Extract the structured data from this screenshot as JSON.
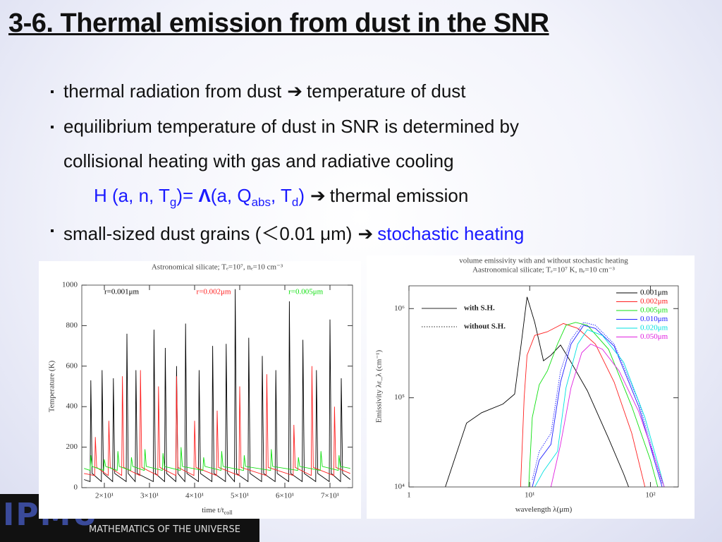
{
  "slide": {
    "title": "3-6. Thermal emission from dust in the SNR",
    "bullets": [
      [
        "thermal radiation from dust",
        "➔",
        "temperature of dust"
      ],
      [
        "equilibrium temperature of dust in SNR is determined by"
      ],
      [
        "collisional heating with gas and radiative cooling"
      ],
      [
        "H (a, n, T",
        "g",
        ")=",
        "Λ",
        "(a, Q",
        "abs",
        ", T",
        "d",
        ")",
        "➔",
        "thermal emission"
      ],
      [
        "small-sized dust grains (＜0.01 μm)",
        "➔",
        "stochastic heating"
      ]
    ],
    "logo": "IPMU",
    "footer": "MATHEMATICS OF THE UNIVERSE"
  },
  "chart_data": [
    {
      "type": "line",
      "title": "Astronomical silicate; Tₑ=10⁷,  nₑ=10 cm⁻³",
      "x_label": "time t/t",
      "x_label_sub": "coll",
      "y_label": "Temperature (K)",
      "xlim": [
        15,
        75
      ],
      "ylim": [
        0,
        1000
      ],
      "xticks": [
        {
          "value": 20,
          "label": "2×10¹"
        },
        {
          "value": 30,
          "label": "3×10¹"
        },
        {
          "value": 40,
          "label": "4×10¹"
        },
        {
          "value": 50,
          "label": "5×10¹"
        },
        {
          "value": 60,
          "label": "6×10¹"
        },
        {
          "value": 70,
          "label": "7×10¹"
        }
      ],
      "yticks": [
        0,
        200,
        400,
        600,
        800,
        1000
      ],
      "series": [
        {
          "name": "r=0.001μm",
          "color": "#000000",
          "x": [
            15.5,
            16.85,
            17,
            17.3,
            19.35,
            19.5,
            19.8,
            21.85,
            22,
            22.3,
            24.85,
            25,
            25.3,
            26.85,
            27,
            27.3,
            30.85,
            31,
            31.3,
            33.35,
            33.5,
            33.8,
            35.85,
            36,
            36.3,
            37.85,
            38,
            38.3,
            40.85,
            41,
            41.3,
            43.85,
            44,
            44.3,
            46.85,
            47,
            47.3,
            48.85,
            49,
            49.3,
            51.85,
            52,
            52.3,
            54.85,
            55,
            55.3,
            57.85,
            58,
            58.3,
            60.85,
            61,
            61.3,
            63.85,
            64,
            64.3,
            66.85,
            67,
            67.3,
            69.85,
            70,
            70.3,
            72.35,
            72.5,
            72.8,
            74.5
          ],
          "values": [
            40,
            30,
            530,
            70,
            30,
            580,
            70,
            30,
            540,
            70,
            30,
            760,
            70,
            30,
            580,
            70,
            30,
            780,
            70,
            30,
            690,
            70,
            30,
            600,
            70,
            30,
            810,
            70,
            30,
            580,
            70,
            30,
            700,
            70,
            30,
            710,
            70,
            30,
            980,
            70,
            30,
            740,
            70,
            30,
            650,
            70,
            30,
            580,
            70,
            30,
            920,
            70,
            30,
            730,
            70,
            30,
            580,
            70,
            30,
            830,
            70,
            30,
            540,
            70,
            40
          ]
        },
        {
          "name": "r=0.002μm",
          "color": "#ff2020",
          "x": [
            15.5,
            17.85,
            18,
            18.3,
            20.85,
            21,
            21.3,
            23.85,
            24,
            24.3,
            27.85,
            28,
            28.3,
            31.85,
            32,
            32.3,
            35.85,
            36,
            36.3,
            39.85,
            40,
            40.3,
            44.85,
            45,
            45.3,
            49.85,
            50,
            50.3,
            55.85,
            56,
            56.3,
            61.85,
            62,
            62.3,
            65.85,
            66,
            66.3,
            70.85,
            71,
            71.3,
            74.5
          ],
          "values": [
            70,
            60,
            250,
            100,
            60,
            330,
            100,
            60,
            550,
            100,
            60,
            580,
            100,
            60,
            500,
            100,
            60,
            550,
            100,
            60,
            330,
            100,
            60,
            380,
            100,
            60,
            500,
            100,
            60,
            560,
            100,
            60,
            310,
            100,
            60,
            600,
            100,
            60,
            400,
            100,
            70
          ]
        },
        {
          "name": "r=0.005μm",
          "color": "#10e010",
          "x": [
            15.5,
            16.85,
            17,
            17.3,
            19.85,
            20,
            20.3,
            22.85,
            23,
            23.3,
            25.85,
            26,
            26.3,
            28.85,
            29,
            29.3,
            32.85,
            33,
            33.3,
            36.85,
            37,
            37.3,
            41.85,
            42,
            42.3,
            45.85,
            46,
            46.3,
            50.85,
            51,
            51.3,
            56.85,
            57,
            57.3,
            62.85,
            63,
            63.3,
            67.85,
            68,
            68.3,
            71.85,
            72,
            72.3,
            74.5
          ],
          "values": [
            95,
            85,
            160,
            105,
            85,
            140,
            105,
            85,
            180,
            105,
            85,
            150,
            105,
            85,
            190,
            105,
            85,
            170,
            105,
            85,
            200,
            105,
            85,
            150,
            105,
            85,
            180,
            105,
            85,
            160,
            105,
            85,
            190,
            105,
            85,
            150,
            105,
            85,
            180,
            105,
            85,
            160,
            105,
            95
          ]
        }
      ]
    },
    {
      "type": "line",
      "title": "volume emissivity with and without stochastic heating",
      "subtitle": "Aastronomical silicate; Tₑ=10⁷ K, nₑ=10 cm⁻³",
      "x_label": "wavelength λ(μm)",
      "y_label": "Emissivity λε_λ (cm⁻¹)",
      "xlog": true,
      "ylog": true,
      "xlim": [
        1,
        170
      ],
      "ylim": [
        10000,
        1800000
      ],
      "xticks": [
        1,
        {
          "value": 10,
          "label": "10¹"
        },
        {
          "value": 100,
          "label": "10²"
        }
      ],
      "yticks": [
        {
          "value": 10000,
          "label": "10⁴"
        },
        {
          "value": 100000,
          "label": "10⁵"
        },
        {
          "value": 1000000,
          "label": "10⁶"
        }
      ],
      "style_legend": [
        {
          "label": "with S.H.",
          "dash": "solid"
        },
        {
          "label": "without S.H.",
          "dash": "dotted"
        }
      ],
      "series": [
        {
          "name": "0.001μm",
          "color": "#000000",
          "x": [
            2,
            3,
            4,
            6,
            7.5,
            8.5,
            9.5,
            11,
            13,
            15,
            18,
            22,
            30,
            45,
            60,
            66
          ],
          "values": [
            10000,
            52000,
            68000,
            85000,
            110000,
            400000,
            1350000,
            700000,
            260000,
            300000,
            390000,
            250000,
            120000,
            35000,
            14000,
            10000
          ]
        },
        {
          "name": "0.002μm",
          "color": "#ff2020",
          "x": [
            8.4,
            9,
            9.5,
            11,
            14,
            19,
            25,
            35,
            50,
            70,
            90
          ],
          "values": [
            10000,
            100000,
            300000,
            500000,
            550000,
            680000,
            600000,
            400000,
            150000,
            40000,
            10000
          ]
        },
        {
          "name": "0.005μm",
          "color": "#10e010",
          "x": [
            9.8,
            10.5,
            12,
            14,
            17,
            20,
            24,
            30,
            45,
            70,
            100,
            115
          ],
          "values": [
            10000,
            60000,
            140000,
            200000,
            400000,
            650000,
            700000,
            650000,
            350000,
            80000,
            20000,
            10000
          ]
        },
        {
          "name": "0.010μm",
          "color": "#2020ff",
          "x": [
            10.5,
            12,
            15,
            18,
            22,
            28,
            35,
            50,
            80,
            110,
            125
          ],
          "values": [
            10000,
            20000,
            30000,
            150000,
            400000,
            650000,
            600000,
            380000,
            80000,
            18000,
            10000
          ],
          "values_without": [
            12000,
            25000,
            40000,
            200000,
            450000,
            700000,
            650000,
            400000,
            90000,
            20000,
            11000
          ]
        },
        {
          "name": "0.020μm",
          "color": "#00e0e0",
          "x": [
            11,
            13,
            17,
            20,
            25,
            30,
            40,
            60,
            90,
            120,
            130
          ],
          "values": [
            10000,
            15000,
            25000,
            130000,
            400000,
            580000,
            500000,
            250000,
            60000,
            15000,
            10000
          ]
        },
        {
          "name": "0.050μm",
          "color": "#e020e0",
          "x": [
            15,
            18,
            22,
            27,
            32,
            40,
            55,
            80,
            110,
            130
          ],
          "values": [
            10000,
            30000,
            130000,
            320000,
            400000,
            350000,
            200000,
            70000,
            20000,
            10000
          ]
        }
      ]
    }
  ]
}
